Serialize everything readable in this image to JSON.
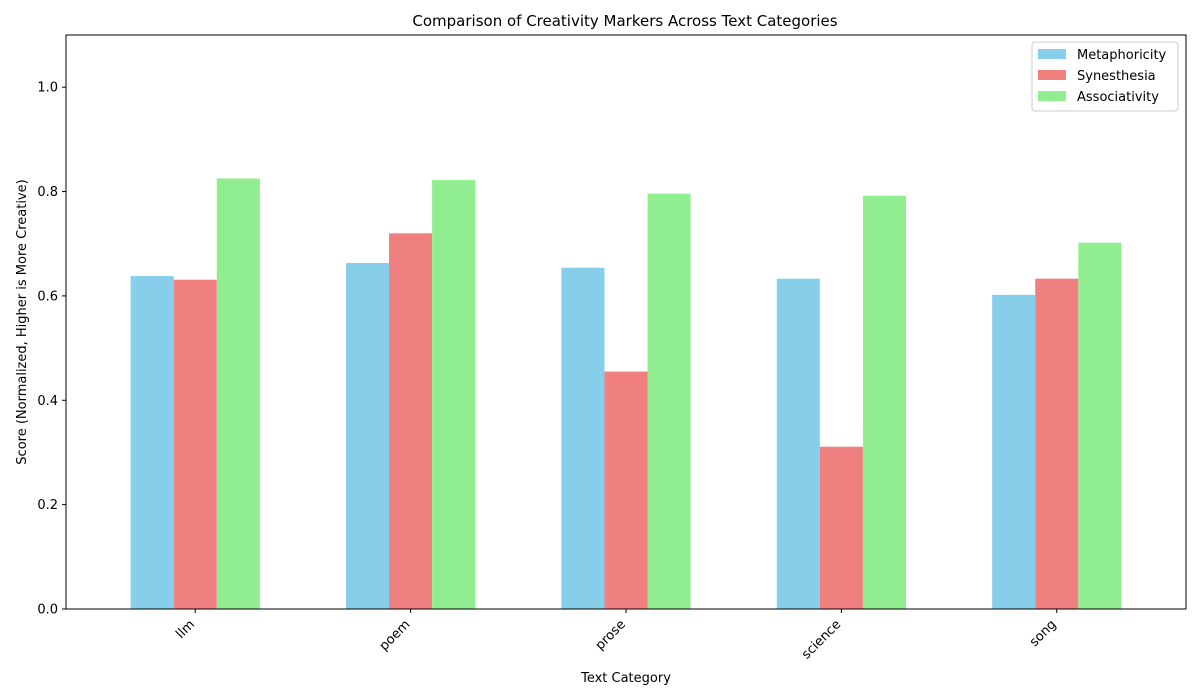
{
  "chart_data": {
    "type": "bar",
    "title": "Comparison of Creativity Markers Across Text Categories",
    "xlabel": "Text Category",
    "ylabel": "Score (Normalized, Higher is More Creative)",
    "categories": [
      "llm",
      "poem",
      "prose",
      "science",
      "song"
    ],
    "series": [
      {
        "name": "Metaphoricity",
        "color": "#87ceeb",
        "values": [
          0.638,
          0.663,
          0.654,
          0.633,
          0.602
        ]
      },
      {
        "name": "Synesthesia",
        "color": "#f08080",
        "values": [
          0.631,
          0.72,
          0.455,
          0.311,
          0.633
        ]
      },
      {
        "name": "Associativity",
        "color": "#90ee90",
        "values": [
          0.825,
          0.822,
          0.796,
          0.792,
          0.702
        ]
      }
    ],
    "ylim": [
      0,
      1.1
    ],
    "yticks": [
      0.0,
      0.2,
      0.4,
      0.6,
      0.8,
      1.0
    ],
    "ytick_labels": [
      "0.0",
      "0.2",
      "0.4",
      "0.6",
      "0.8",
      "1.0"
    ],
    "xtick_rotation": 45,
    "grid": false,
    "legend_position": "top-right"
  }
}
